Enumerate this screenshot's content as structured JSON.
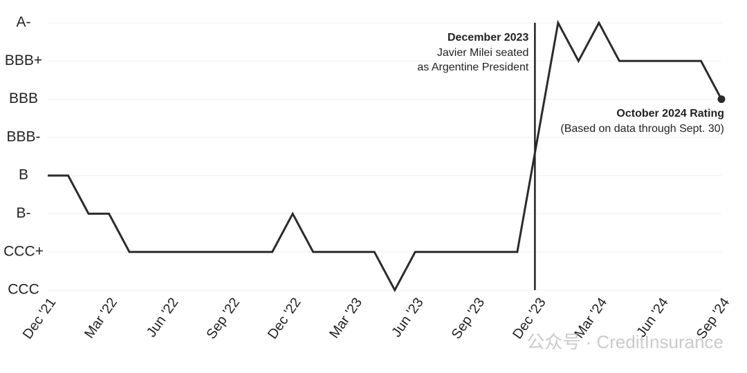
{
  "chart_data": {
    "type": "line",
    "categories": [
      "Dec '21",
      null,
      null,
      "Mar '22",
      null,
      null,
      "Jun '22",
      null,
      null,
      "Sep '22",
      null,
      null,
      "Dec '22",
      null,
      null,
      "Mar '23",
      null,
      null,
      "Jun '23",
      null,
      null,
      "Sep '23",
      null,
      null,
      "Dec '23",
      null,
      null,
      "Mar '24",
      null,
      null,
      "Jun '24",
      null,
      null,
      "Sep '24"
    ],
    "series": [
      {
        "color": "#2b2b2b",
        "values": [
          3,
          3,
          2,
          2,
          1,
          1,
          1,
          1,
          1,
          1,
          1,
          1,
          2,
          1,
          1,
          1,
          1,
          0,
          1,
          1,
          1,
          1,
          1,
          1,
          4,
          7,
          6,
          7,
          6,
          6,
          6,
          6,
          6,
          5
        ]
      }
    ],
    "ylim": [
      0,
      7
    ],
    "yticks": [
      {
        "value": 0,
        "label": "CCC"
      },
      {
        "value": 1,
        "label": "CCC+"
      },
      {
        "value": 2,
        "label": "B-"
      },
      {
        "value": 3,
        "label": "B"
      },
      {
        "value": 4,
        "label": "BBB-"
      },
      {
        "value": 5,
        "label": "BBB"
      },
      {
        "value": 6,
        "label": "BBB+"
      },
      {
        "value": 7,
        "label": "A-"
      }
    ],
    "grid": true,
    "annotations": [
      {
        "x": "Dec '23",
        "title": "December 2023",
        "lines": [
          "Javier Milei seated",
          "as Argentine President"
        ]
      },
      {
        "x": "Sep '24",
        "title": "October 2024 Rating",
        "lines": [
          "(Based on data through Sept. 30)"
        ]
      }
    ],
    "watermark": "公众号 · CreditInsurance"
  }
}
